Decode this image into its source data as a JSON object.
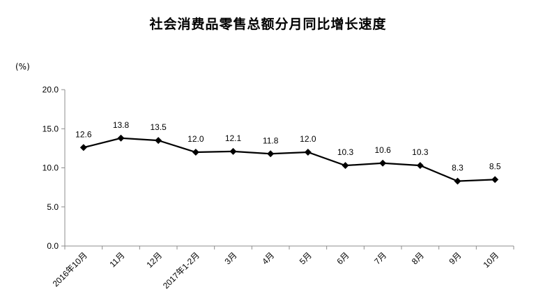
{
  "chart_data": {
    "type": "line",
    "title": "社会消费品零售总额分月同比增长速度",
    "ylabel": "(%)",
    "xlabel": "",
    "categories": [
      "2016年10月",
      "11月",
      "12月",
      "2017年1-2月",
      "3月",
      "4月",
      "5月",
      "6月",
      "7月",
      "8月",
      "9月",
      "10月"
    ],
    "series": [
      {
        "values": [
          12.6,
          13.8,
          13.5,
          12.0,
          12.1,
          11.8,
          12.0,
          10.3,
          10.6,
          10.3,
          8.3,
          8.5
        ],
        "labels": [
          "12.6",
          "13.8",
          "13.5",
          "12.0",
          "12.1",
          "11.8",
          "12.0",
          "10.3",
          "10.6",
          "10.3",
          "8.3",
          "8.5"
        ],
        "color": "#000000",
        "marker": "diamond"
      }
    ],
    "yticks": [
      "0.0",
      "5.0",
      "10.0",
      "15.0",
      "20.0"
    ],
    "ylim": [
      0,
      20
    ],
    "grid": false,
    "legend": "none"
  }
}
